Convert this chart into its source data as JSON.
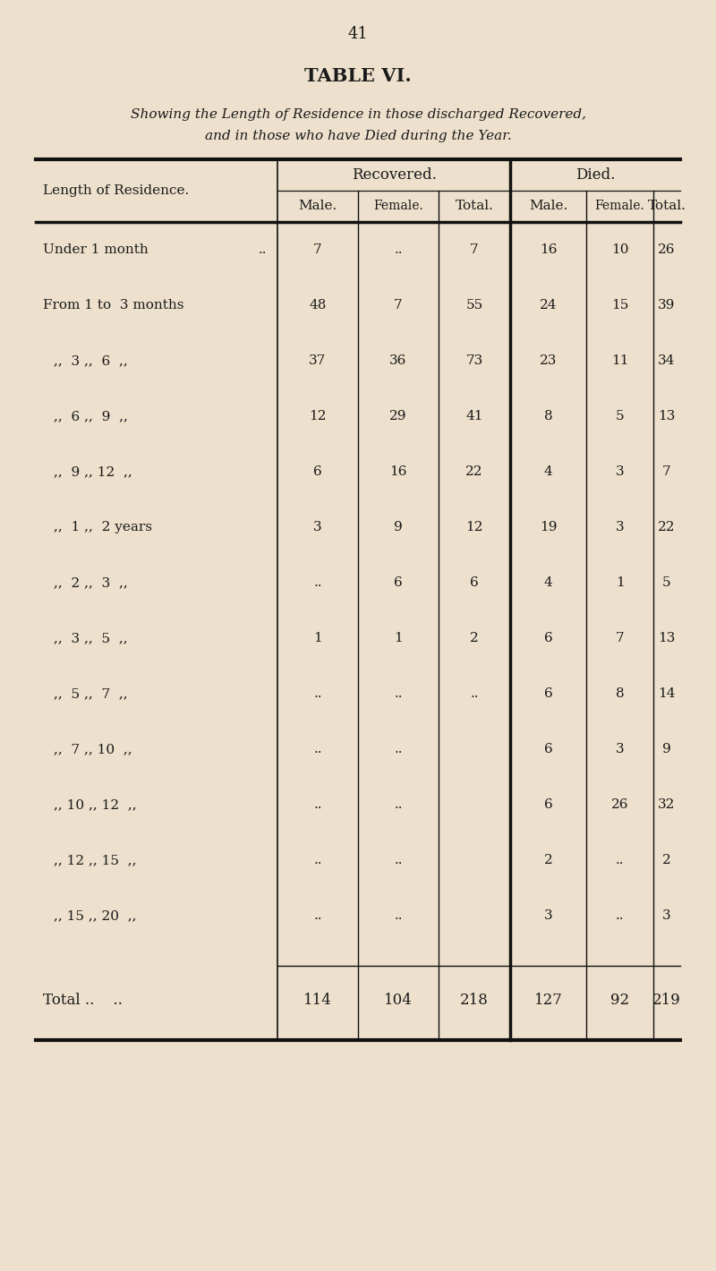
{
  "page_number": "41",
  "title": "TABLE VI.",
  "subtitle_line1": "Showing the Length of Residence in those discharged Recovered,",
  "subtitle_line2": "and in those who have Died during the Year.",
  "rows": [
    {
      "label": "Under 1 month",
      "label2": "..",
      "rec_male": "7",
      "rec_female": "..",
      "rec_total": "7",
      "died_male": "16",
      "died_female": "10",
      "died_total": "26"
    },
    {
      "label": "From 1 to  3 months",
      "label2": "",
      "rec_male": "48",
      "rec_female": "7",
      "rec_total": "55",
      "died_male": "24",
      "died_female": "15",
      "died_total": "39"
    },
    {
      "label": ",,  3 ,,  6  ,,",
      "label2": "",
      "rec_male": "37",
      "rec_female": "36",
      "rec_total": "73",
      "died_male": "23",
      "died_female": "11",
      "died_total": "34"
    },
    {
      "label": ",,  6 ,,  9  ,,",
      "label2": "",
      "rec_male": "12",
      "rec_female": "29",
      "rec_total": "41",
      "died_male": "8",
      "died_female": "5",
      "died_total": "13"
    },
    {
      "label": ",,  9 ,, 12  ,,",
      "label2": "",
      "rec_male": "6",
      "rec_female": "16",
      "rec_total": "22",
      "died_male": "4",
      "died_female": "3",
      "died_total": "7"
    },
    {
      "label": ",,  1 ,,  2 years",
      "label2": "",
      "rec_male": "3",
      "rec_female": "9",
      "rec_total": "12",
      "died_male": "19",
      "died_female": "3",
      "died_total": "22"
    },
    {
      "label": ",,  2 ,,  3  ,,",
      "label2": "",
      "rec_male": "..",
      "rec_female": "6",
      "rec_total": "6",
      "died_male": "4",
      "died_female": "1",
      "died_total": "5"
    },
    {
      "label": ",,  3 ,,  5  ,,",
      "label2": "",
      "rec_male": "1",
      "rec_female": "1",
      "rec_total": "2",
      "died_male": "6",
      "died_female": "7",
      "died_total": "13"
    },
    {
      "label": ",,  5 ,,  7  ,,",
      "label2": "",
      "rec_male": "..",
      "rec_female": "..",
      "rec_total": "..",
      "died_male": "6",
      "died_female": "8",
      "died_total": "14"
    },
    {
      "label": ",,  7 ,, 10  ,,",
      "label2": "",
      "rec_male": "..",
      "rec_female": "..",
      "rec_total": "",
      "died_male": "6",
      "died_female": "3",
      "died_total": "9"
    },
    {
      "label": ",, 10 ,, 12  ,,",
      "label2": "",
      "rec_male": "..",
      "rec_female": "..",
      "rec_total": "",
      "died_male": "6",
      "died_female": "26",
      "died_total": "32"
    },
    {
      "label": ",, 12 ,, 15  ,,",
      "label2": "",
      "rec_male": "..",
      "rec_female": "..",
      "rec_total": "",
      "died_male": "2",
      "died_female": "..",
      "died_total": "2"
    },
    {
      "label": ",, 15 ,, 20  ,,",
      "label2": "",
      "rec_male": "..",
      "rec_female": "..",
      "rec_total": "",
      "died_male": "3",
      "died_female": "..",
      "died_total": "3"
    }
  ],
  "total_row": {
    "rec_male": "114",
    "rec_female": "104",
    "rec_total": "218",
    "died_male": "127",
    "died_female": "92",
    "died_total": "219"
  },
  "bg_color": "#ede0cc",
  "text_color": "#1a1a1a",
  "line_color": "#111111"
}
